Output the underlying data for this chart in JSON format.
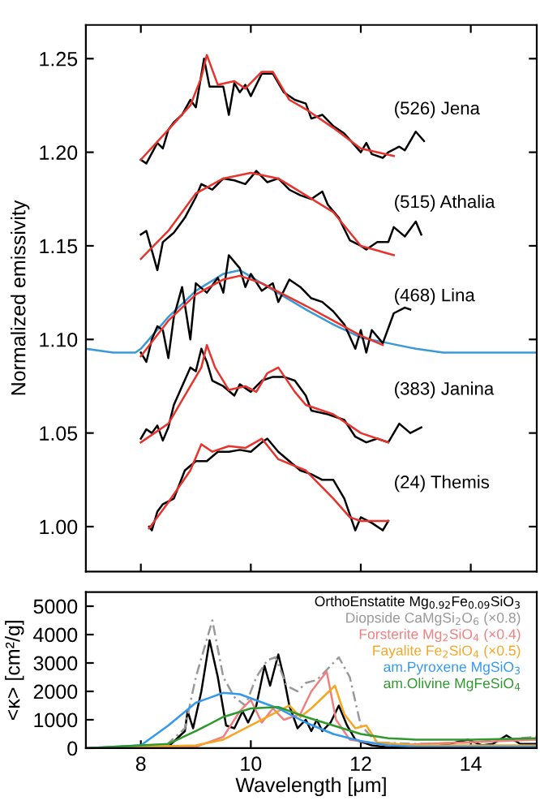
{
  "chart_data": [
    {
      "type": "line",
      "ylabel": "Normalized emissivity",
      "xlim": [
        7,
        15.2
      ],
      "ylim": [
        0.976,
        1.268
      ],
      "xticks": [
        {
          "value": 8,
          "label": null
        },
        {
          "value": 10,
          "label": null
        },
        {
          "value": 12,
          "label": null
        },
        {
          "value": 14,
          "label": null
        }
      ],
      "yticks": [
        {
          "value": 1.0,
          "label": "1.00"
        },
        {
          "value": 1.05,
          "label": "1.05"
        },
        {
          "value": 1.1,
          "label": "1.10"
        },
        {
          "value": 1.15,
          "label": "1.15"
        },
        {
          "value": 1.2,
          "label": "1.20"
        },
        {
          "value": 1.25,
          "label": "1.25"
        }
      ],
      "tick_labels": "y",
      "grid": false,
      "legend": false,
      "series": [
        {
          "color": "#3a9ad9",
          "x": [
            7.0,
            7.5,
            7.9,
            8.0,
            8.5,
            9.0,
            9.5,
            9.8,
            10.2,
            11.0,
            11.5,
            12.0,
            12.5,
            13.0,
            13.5,
            14.0,
            14.5,
            15.2
          ],
          "values": [
            1.095,
            1.093,
            1.093,
            1.095,
            1.112,
            1.126,
            1.135,
            1.137,
            1.13,
            1.116,
            1.108,
            1.101,
            1.098,
            1.095,
            1.093,
            1.093,
            1.093,
            1.093
          ]
        },
        {
          "color": "#000000",
          "x": [
            8.0,
            8.1,
            8.3,
            8.4,
            8.5,
            8.6,
            8.75,
            8.9,
            9.0,
            9.15,
            9.25,
            9.5,
            9.6,
            9.7,
            9.8,
            9.9,
            10.0,
            10.2,
            10.4,
            10.6,
            10.8,
            11.0,
            11.1,
            11.3,
            11.5,
            11.7,
            12.0,
            12.1,
            12.2,
            12.4,
            12.5,
            12.7,
            12.8,
            13.0,
            13.15
          ],
          "values": [
            1.196,
            1.194,
            1.205,
            1.202,
            1.212,
            1.216,
            1.22,
            1.228,
            1.224,
            1.25,
            1.235,
            1.235,
            1.22,
            1.237,
            1.232,
            1.236,
            1.23,
            1.242,
            1.242,
            1.232,
            1.228,
            1.226,
            1.218,
            1.22,
            1.214,
            1.21,
            1.2,
            1.205,
            1.199,
            1.197,
            1.2,
            1.203,
            1.201,
            1.211,
            1.206
          ]
        },
        {
          "color": "#e8322c",
          "x": [
            8.0,
            8.5,
            8.9,
            9.1,
            9.2,
            9.4,
            9.7,
            9.9,
            10.2,
            10.4,
            10.7,
            11.0,
            11.5,
            12.0,
            12.6
          ],
          "values": [
            1.196,
            1.212,
            1.225,
            1.24,
            1.252,
            1.236,
            1.238,
            1.234,
            1.243,
            1.243,
            1.228,
            1.223,
            1.213,
            1.202,
            1.198
          ]
        },
        {
          "color": "#000000",
          "x": [
            8.0,
            8.1,
            8.3,
            8.4,
            8.6,
            8.8,
            9.0,
            9.1,
            9.3,
            9.5,
            9.7,
            9.9,
            10.1,
            10.3,
            10.5,
            10.7,
            10.9,
            11.1,
            11.3,
            11.4,
            11.6,
            11.8,
            12.0,
            12.1,
            12.3,
            12.5,
            12.6,
            12.8,
            13.0,
            13.1
          ],
          "values": [
            1.156,
            1.158,
            1.137,
            1.152,
            1.157,
            1.165,
            1.176,
            1.183,
            1.18,
            1.186,
            1.185,
            1.183,
            1.19,
            1.184,
            1.186,
            1.18,
            1.177,
            1.175,
            1.179,
            1.172,
            1.165,
            1.153,
            1.15,
            1.148,
            1.152,
            1.152,
            1.16,
            1.155,
            1.163,
            1.156
          ]
        },
        {
          "color": "#e8322c",
          "x": [
            8.0,
            8.5,
            9.0,
            9.5,
            10.0,
            10.5,
            11.0,
            11.5,
            12.0,
            12.6
          ],
          "values": [
            1.143,
            1.158,
            1.178,
            1.186,
            1.189,
            1.186,
            1.177,
            1.168,
            1.15,
            1.145
          ]
        },
        {
          "color": "#000000",
          "x": [
            8.0,
            8.1,
            8.2,
            8.3,
            8.4,
            8.5,
            8.6,
            8.75,
            8.9,
            9.0,
            9.2,
            9.4,
            9.5,
            9.6,
            9.8,
            9.9,
            10.0,
            10.2,
            10.4,
            10.5,
            10.7,
            10.9,
            11.1,
            11.3,
            11.5,
            11.7,
            11.9,
            12.0,
            12.1,
            12.2,
            12.4,
            12.6,
            12.8,
            12.9
          ],
          "values": [
            1.093,
            1.088,
            1.1,
            1.107,
            1.105,
            1.09,
            1.112,
            1.128,
            1.1,
            1.13,
            1.125,
            1.133,
            1.125,
            1.145,
            1.138,
            1.128,
            1.135,
            1.126,
            1.13,
            1.12,
            1.132,
            1.128,
            1.122,
            1.12,
            1.115,
            1.108,
            1.095,
            1.105,
            1.093,
            1.105,
            1.098,
            1.114,
            1.117,
            1.116
          ]
        },
        {
          "color": "#e8322c",
          "x": [
            8.0,
            8.5,
            9.0,
            9.5,
            9.8,
            10.2,
            11.0,
            11.5,
            12.0,
            12.4
          ],
          "values": [
            1.091,
            1.11,
            1.124,
            1.132,
            1.134,
            1.13,
            1.118,
            1.11,
            1.102,
            1.097
          ]
        },
        {
          "color": "#000000",
          "x": [
            8.0,
            8.1,
            8.2,
            8.3,
            8.4,
            8.5,
            8.6,
            8.75,
            8.9,
            9.0,
            9.1,
            9.2,
            9.3,
            9.5,
            9.7,
            9.8,
            10.0,
            10.2,
            10.4,
            10.6,
            10.8,
            11.0,
            11.1,
            11.4,
            11.7,
            11.9,
            12.1,
            12.3,
            12.5,
            12.7,
            12.9,
            13.1
          ],
          "values": [
            1.047,
            1.052,
            1.05,
            1.054,
            1.046,
            1.053,
            1.065,
            1.075,
            1.085,
            1.083,
            1.095,
            1.088,
            1.078,
            1.075,
            1.07,
            1.076,
            1.072,
            1.078,
            1.08,
            1.08,
            1.078,
            1.07,
            1.062,
            1.06,
            1.057,
            1.048,
            1.045,
            1.047,
            1.045,
            1.055,
            1.05,
            1.053
          ]
        },
        {
          "color": "#e8322c",
          "x": [
            8.0,
            8.5,
            8.9,
            9.1,
            9.2,
            9.35,
            9.6,
            9.9,
            10.1,
            10.3,
            10.5,
            10.8,
            11.0,
            11.5,
            12.0,
            12.5
          ],
          "values": [
            1.045,
            1.055,
            1.075,
            1.085,
            1.097,
            1.085,
            1.073,
            1.075,
            1.072,
            1.082,
            1.085,
            1.072,
            1.065,
            1.06,
            1.05,
            1.045
          ]
        },
        {
          "color": "#000000",
          "x": [
            8.15,
            8.2,
            8.3,
            8.4,
            8.6,
            8.8,
            9.0,
            9.2,
            9.4,
            9.6,
            9.8,
            10.0,
            10.2,
            10.3,
            10.5,
            10.7,
            10.9,
            11.1,
            11.3,
            11.5,
            11.7,
            11.9,
            12.0,
            12.2,
            12.4,
            12.5
          ],
          "values": [
            1.0,
            0.998,
            1.008,
            1.012,
            1.015,
            1.03,
            1.035,
            1.035,
            1.04,
            1.04,
            1.041,
            1.04,
            1.045,
            1.047,
            1.04,
            1.035,
            1.03,
            1.028,
            1.025,
            1.025,
            1.015,
            0.998,
            1.005,
            1.002,
            0.998,
            1.003
          ]
        },
        {
          "color": "#e8322c",
          "x": [
            8.15,
            8.5,
            8.9,
            9.1,
            9.3,
            9.6,
            9.9,
            10.2,
            10.5,
            11.0,
            11.5,
            11.8,
            12.0,
            12.5
          ],
          "values": [
            0.999,
            1.013,
            1.03,
            1.044,
            1.04,
            1.043,
            1.042,
            1.047,
            1.036,
            1.03,
            1.015,
            1.005,
            1.003,
            1.003
          ]
        }
      ],
      "annotations": [
        "(526) Jena",
        "(515) Athalia",
        "(468) Lina",
        "(383) Janina",
        "(24) Themis"
      ]
    },
    {
      "type": "line",
      "xlabel": "Wavelength [μm]",
      "ylabel": "<κ> [cm²/g]",
      "xlim": [
        7,
        15.2
      ],
      "ylim": [
        0,
        5500
      ],
      "xticks": [
        8,
        10,
        12,
        14
      ],
      "yticks": [
        0,
        1000,
        2000,
        3000,
        4000,
        5000
      ],
      "grid": false,
      "legend": "top right",
      "series": [
        {
          "name": "OrthoEnstatite Mg$_{0.92}$Fe$_{0.09}$SiO$_{3}$",
          "color": "#000000",
          "x": [
            7.0,
            8.0,
            8.5,
            8.8,
            8.85,
            8.95,
            9.1,
            9.25,
            9.4,
            9.55,
            9.7,
            9.85,
            9.95,
            10.1,
            10.25,
            10.35,
            10.5,
            10.6,
            10.7,
            10.85,
            11.0,
            11.1,
            11.2,
            11.3,
            11.45,
            11.6,
            11.75,
            11.9,
            12.2,
            12.5,
            13.0,
            13.4,
            13.6,
            13.95,
            14.2,
            14.4,
            14.65,
            14.9,
            15.2
          ],
          "values": [
            0,
            0,
            50,
            600,
            1300,
            700,
            2000,
            3800,
            2500,
            800,
            700,
            1300,
            900,
            1500,
            2900,
            2200,
            3300,
            2500,
            1500,
            700,
            1000,
            600,
            1000,
            600,
            900,
            1500,
            800,
            300,
            100,
            30,
            20,
            80,
            150,
            300,
            100,
            150,
            450,
            150,
            150
          ]
        },
        {
          "name": "Diopside CaMgSi$_{2}$O$_{6}$ (×0.8)",
          "color": "#999999",
          "line_style": "dashed",
          "x": [
            7.0,
            8.4,
            8.8,
            9.0,
            9.3,
            9.5,
            9.7,
            9.9,
            10.1,
            10.3,
            10.45,
            10.65,
            10.85,
            11.0,
            11.2,
            11.6,
            11.8,
            12.0,
            12.3,
            13.0,
            14.0,
            15.2
          ],
          "values": [
            0,
            0,
            700,
            2500,
            4500,
            2500,
            1800,
            1500,
            2500,
            3100,
            3200,
            2200,
            2000,
            2300,
            2400,
            3200,
            2500,
            800,
            200,
            150,
            200,
            400
          ]
        },
        {
          "name": "Forsterite Mg$_{2}$SiO$_{4}$ (×0.4)",
          "color": "#f08080",
          "x": [
            7.0,
            9.0,
            9.5,
            9.8,
            10.0,
            10.2,
            10.4,
            10.6,
            10.9,
            11.1,
            11.38,
            11.55,
            11.8,
            12.5,
            15.2
          ],
          "values": [
            0,
            50,
            400,
            1300,
            1700,
            900,
            1400,
            1000,
            1200,
            2000,
            2700,
            1000,
            300,
            100,
            300
          ]
        },
        {
          "name": "Fayalite Fe$_{2}$SiO$_{4}$ (×0.5)",
          "color": "#f5a623",
          "x": [
            7.0,
            9.0,
            9.5,
            10.0,
            10.4,
            10.7,
            10.9,
            11.1,
            11.53,
            11.7,
            11.9,
            12.1,
            12.3,
            13.0,
            15.2
          ],
          "values": [
            0,
            100,
            300,
            800,
            1200,
            1500,
            1100,
            1400,
            2200,
            1200,
            700,
            800,
            200,
            100,
            100
          ]
        },
        {
          "name": "am.Pyroxene MgSiO$_{3}$",
          "color": "#3399ee",
          "x": [
            7.0,
            8.0,
            8.5,
            9.0,
            9.5,
            9.8,
            10.5,
            11.0,
            11.5,
            12.0,
            12.5,
            13.0,
            15.2
          ],
          "values": [
            0,
            100,
            800,
            1600,
            1950,
            1900,
            1400,
            900,
            500,
            250,
            100,
            50,
            50
          ]
        },
        {
          "name": "am.Olivine MgFeSiO$_{4}$",
          "color": "#2e9a2e",
          "x": [
            7.0,
            8.5,
            9.0,
            9.5,
            10.0,
            10.5,
            11.0,
            11.5,
            12.0,
            12.5,
            13.0,
            14.0,
            15.2
          ],
          "values": [
            0,
            150,
            600,
            1100,
            1400,
            1450,
            1100,
            800,
            500,
            350,
            300,
            300,
            350
          ]
        }
      ]
    }
  ]
}
